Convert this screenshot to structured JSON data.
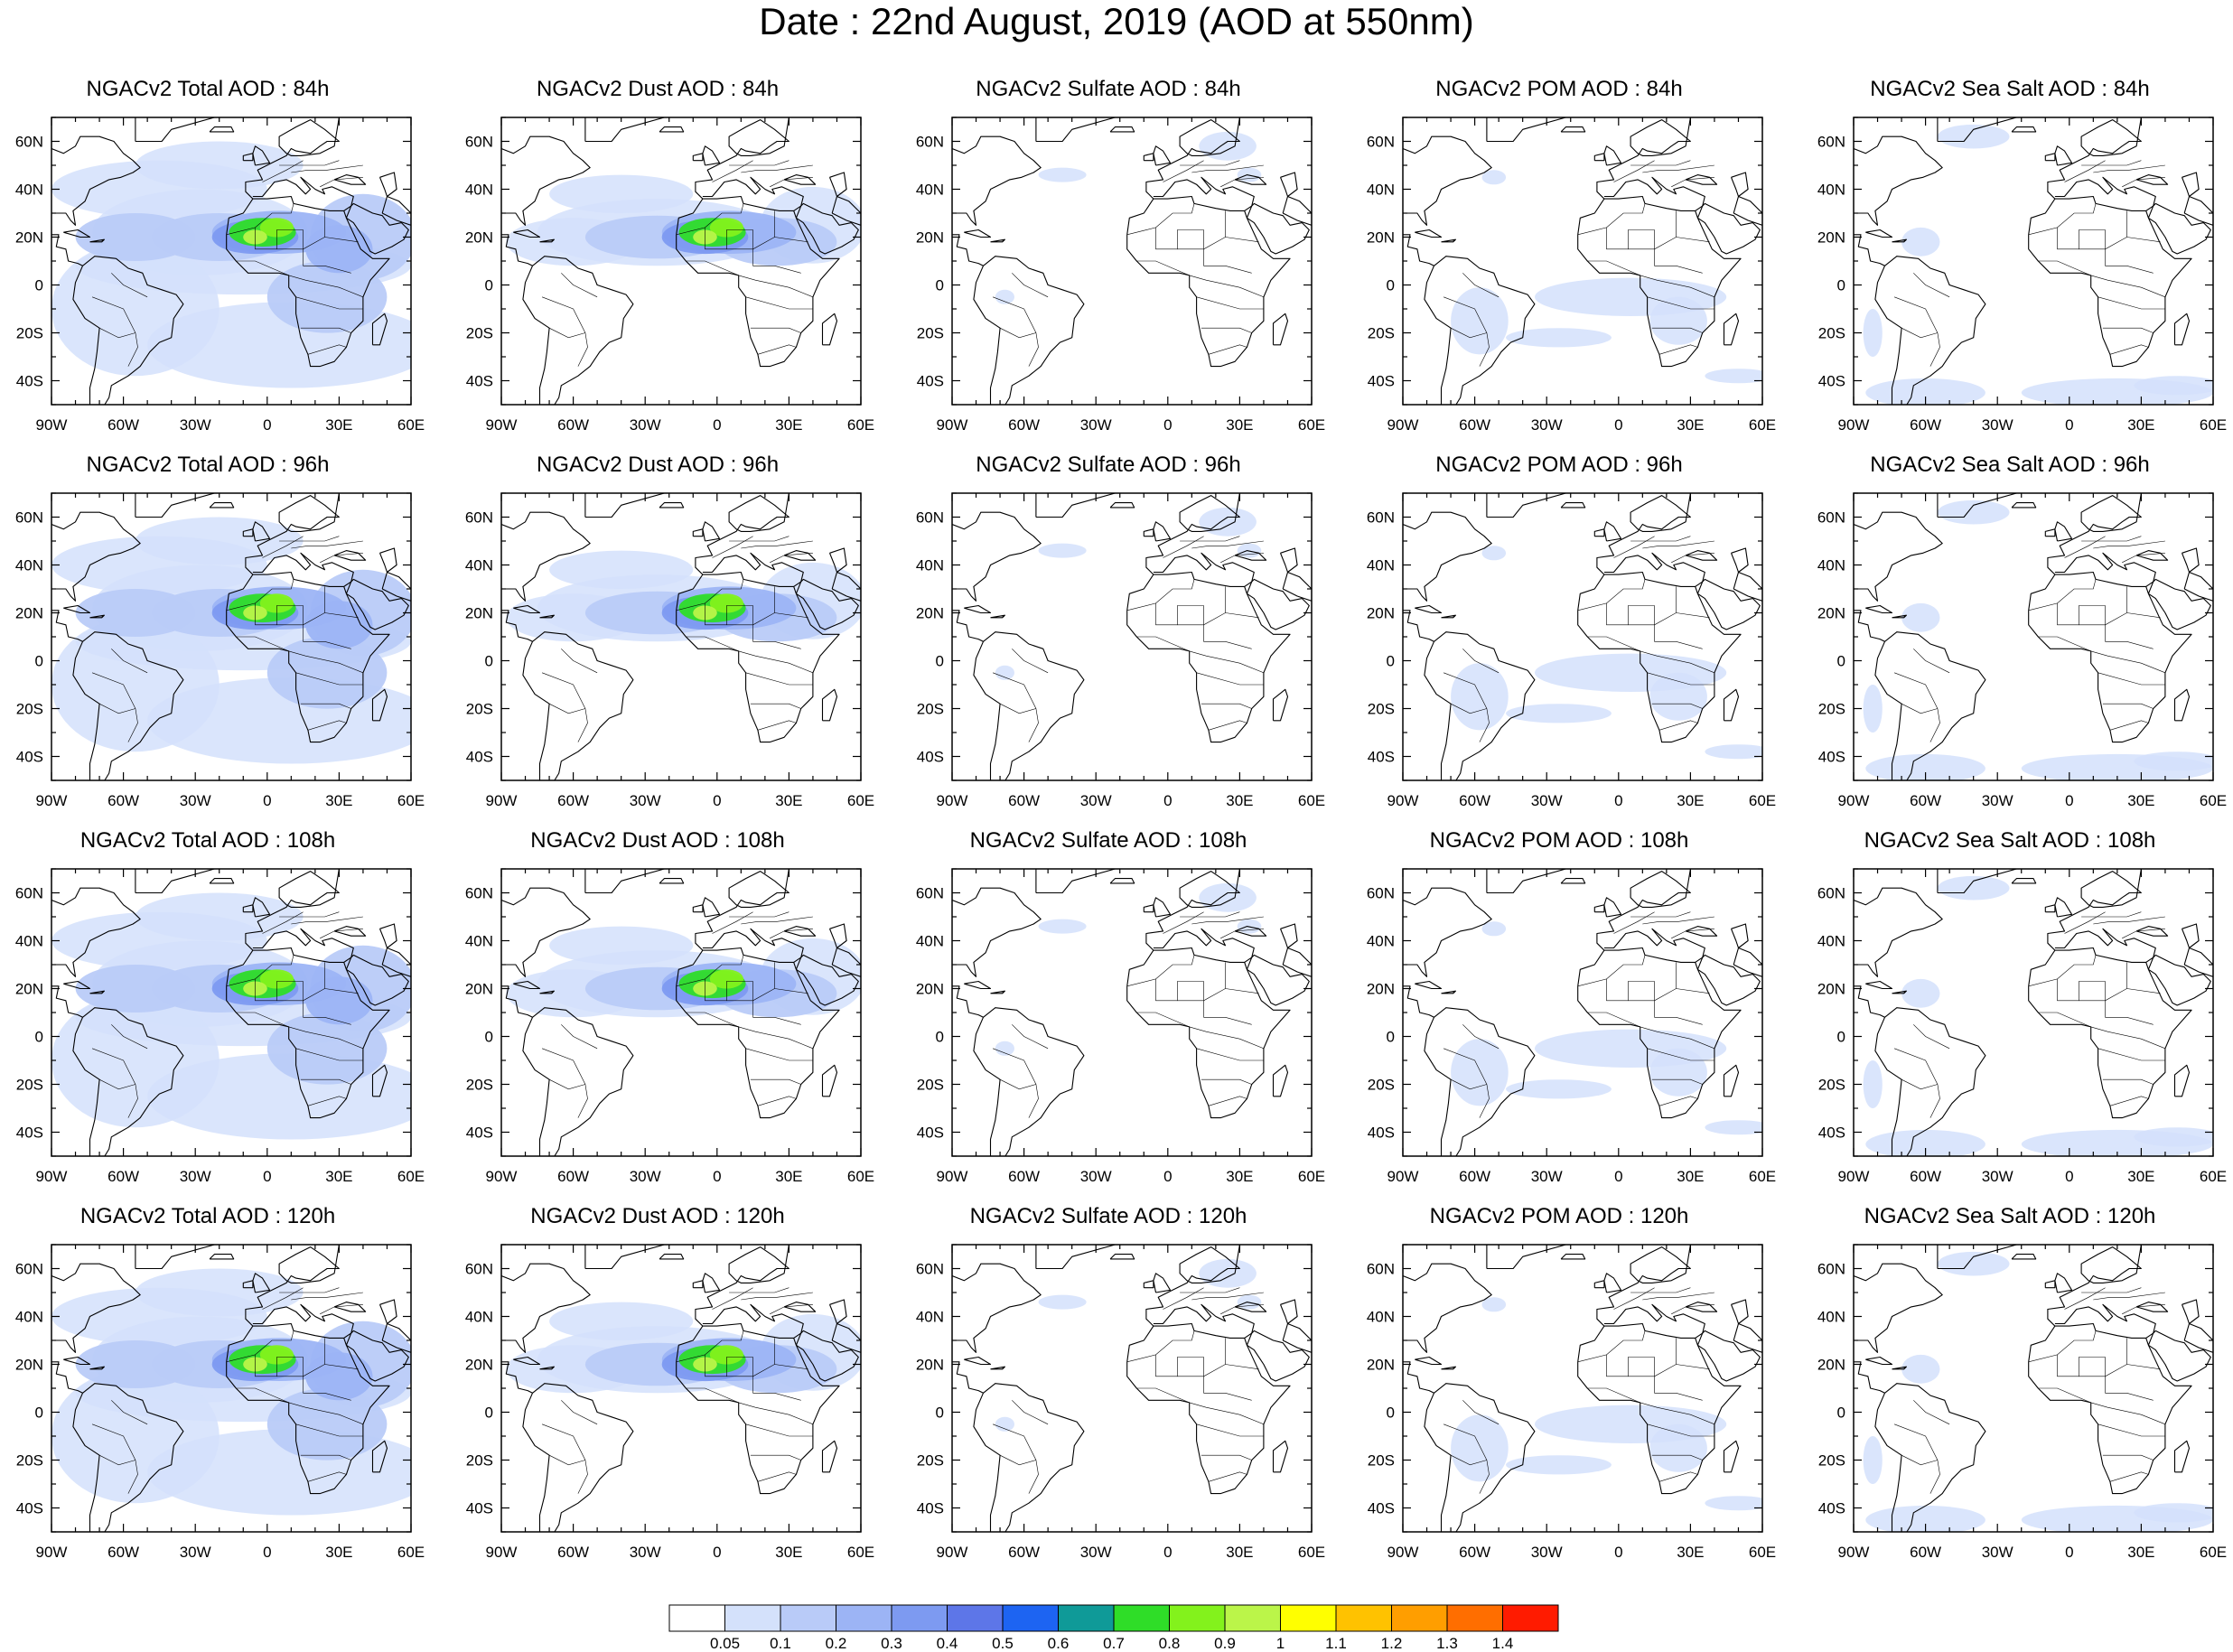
{
  "title": "Date : 22nd August, 2019 (AOD at 550nm)",
  "axes": {
    "lon_ticks": [
      "90W",
      "60W",
      "30W",
      "0",
      "30E",
      "60E"
    ],
    "lat_ticks": [
      "60N",
      "40N",
      "20N",
      "0",
      "20S",
      "40S"
    ],
    "lon_range": [
      -90,
      60
    ],
    "lat_range": [
      -50,
      70
    ]
  },
  "panels": [
    {
      "title": "NGACv2 Total AOD : 84h",
      "variable": "total",
      "hour": 84
    },
    {
      "title": "NGACv2 Dust AOD : 84h",
      "variable": "dust",
      "hour": 84
    },
    {
      "title": "NGACv2 Sulfate AOD : 84h",
      "variable": "sulfate",
      "hour": 84
    },
    {
      "title": "NGACv2 POM AOD : 84h",
      "variable": "pom",
      "hour": 84
    },
    {
      "title": "NGACv2 Sea Salt AOD : 84h",
      "variable": "seasalt",
      "hour": 84
    },
    {
      "title": "NGACv2 Total AOD : 96h",
      "variable": "total",
      "hour": 96
    },
    {
      "title": "NGACv2 Dust AOD : 96h",
      "variable": "dust",
      "hour": 96
    },
    {
      "title": "NGACv2 Sulfate AOD : 96h",
      "variable": "sulfate",
      "hour": 96
    },
    {
      "title": "NGACv2 POM AOD : 96h",
      "variable": "pom",
      "hour": 96
    },
    {
      "title": "NGACv2 Sea Salt AOD : 96h",
      "variable": "seasalt",
      "hour": 96
    },
    {
      "title": "NGACv2 Total AOD : 108h",
      "variable": "total",
      "hour": 108
    },
    {
      "title": "NGACv2 Dust AOD : 108h",
      "variable": "dust",
      "hour": 108
    },
    {
      "title": "NGACv2 Sulfate AOD : 108h",
      "variable": "sulfate",
      "hour": 108
    },
    {
      "title": "NGACv2 POM AOD : 108h",
      "variable": "pom",
      "hour": 108
    },
    {
      "title": "NGACv2 Sea Salt AOD : 108h",
      "variable": "seasalt",
      "hour": 108
    },
    {
      "title": "NGACv2 Total AOD : 120h",
      "variable": "total",
      "hour": 120
    },
    {
      "title": "NGACv2 Dust AOD : 120h",
      "variable": "dust",
      "hour": 120
    },
    {
      "title": "NGACv2 Sulfate AOD : 120h",
      "variable": "sulfate",
      "hour": 120
    },
    {
      "title": "NGACv2 POM AOD : 120h",
      "variable": "pom",
      "hour": 120
    },
    {
      "title": "NGACv2 Sea Salt  AOD : 120h",
      "variable": "seasalt",
      "hour": 120
    }
  ],
  "colorbar": {
    "labels": [
      "0.05",
      "0.1",
      "0.2",
      "0.3",
      "0.4",
      "0.5",
      "0.6",
      "0.7",
      "0.8",
      "0.9",
      "1",
      "1.1",
      "1.2",
      "1.3",
      "1.4"
    ],
    "colors": [
      "#ffffff",
      "#d4e1fb",
      "#b9cbf8",
      "#9cb4f5",
      "#7d9af1",
      "#5d76e8",
      "#1d64f2",
      "#0f9a98",
      "#2fdd28",
      "#83f21c",
      "#bbf549",
      "#ffff00",
      "#ffc200",
      "#ff9e00",
      "#ff6e00",
      "#ff1b00"
    ]
  },
  "chart_data": {
    "type": "heatmap",
    "value_label": "AOD at 550nm",
    "x_range": [
      -90,
      60
    ],
    "y_range": [
      -50,
      70
    ],
    "features": [
      {
        "variable": "total",
        "hour": 84,
        "max_level": "0.8-1.1",
        "regions": [
          "Sahara/Sahel dust plume",
          "tropical Atlantic",
          "Arabian Peninsula",
          "central Africa",
          "South Atlantic"
        ]
      },
      {
        "variable": "total",
        "hour": 96,
        "max_level": "0.8-1.1",
        "regions": [
          "Sahara/Sahel dust plume",
          "tropical Atlantic",
          "Arabian Peninsula",
          "central Africa"
        ]
      },
      {
        "variable": "total",
        "hour": 108,
        "max_level": "0.8-1.1",
        "regions": [
          "Sahara/Sahel dust plume",
          "tropical Atlantic",
          "central Africa"
        ]
      },
      {
        "variable": "total",
        "hour": 120,
        "max_level": "0.8-1.1",
        "regions": [
          "Sahara/Sahel dust plume",
          "Caribbean",
          "central Africa"
        ]
      },
      {
        "variable": "dust",
        "hour": 84,
        "max_level": "0.8-1.1",
        "regions": [
          "Sahara",
          "tropical Atlantic",
          "Arabian Peninsula"
        ]
      },
      {
        "variable": "dust",
        "hour": 96,
        "max_level": "0.8-1.1",
        "regions": [
          "Sahara",
          "tropical Atlantic",
          "Arabian Peninsula"
        ]
      },
      {
        "variable": "dust",
        "hour": 108,
        "max_level": "0.8-1.1",
        "regions": [
          "Sahara",
          "tropical Atlantic"
        ]
      },
      {
        "variable": "dust",
        "hour": 120,
        "max_level": "0.8-1.1",
        "regions": [
          "Sahara",
          "Caribbean"
        ]
      },
      {
        "variable": "sulfate",
        "hour": 84,
        "max_level": "0.05-0.1",
        "regions": [
          "eastern Europe",
          "North Atlantic"
        ]
      },
      {
        "variable": "sulfate",
        "hour": 96,
        "max_level": "0.05-0.1",
        "regions": [
          "eastern Europe",
          "North Atlantic"
        ]
      },
      {
        "variable": "sulfate",
        "hour": 108,
        "max_level": "0.05-0.1",
        "regions": [
          "eastern Europe",
          "North Atlantic"
        ]
      },
      {
        "variable": "sulfate",
        "hour": 120,
        "max_level": "0.05-0.1",
        "regions": [
          "eastern Europe",
          "North Atlantic"
        ]
      },
      {
        "variable": "pom",
        "hour": 84,
        "max_level": "0.1-0.2",
        "regions": [
          "central/southern Africa",
          "South Atlantic",
          "South America"
        ]
      },
      {
        "variable": "pom",
        "hour": 96,
        "max_level": "0.1-0.2",
        "regions": [
          "central/southern Africa",
          "South Atlantic",
          "South America"
        ]
      },
      {
        "variable": "pom",
        "hour": 108,
        "max_level": "0.1-0.2",
        "regions": [
          "central/southern Africa",
          "South Atlantic",
          "South America"
        ]
      },
      {
        "variable": "pom",
        "hour": 120,
        "max_level": "0.1-0.2",
        "regions": [
          "central/southern Africa",
          "South Atlantic",
          "South America"
        ]
      },
      {
        "variable": "seasalt",
        "hour": 84,
        "max_level": "0.05-0.1",
        "regions": [
          "Southern Ocean",
          "North Atlantic",
          "Caribbean"
        ]
      },
      {
        "variable": "seasalt",
        "hour": 96,
        "max_level": "0.05-0.1",
        "regions": [
          "Southern Ocean",
          "North Atlantic"
        ]
      },
      {
        "variable": "seasalt",
        "hour": 108,
        "max_level": "0.05-0.1",
        "regions": [
          "Southern Ocean",
          "North Atlantic"
        ]
      },
      {
        "variable": "seasalt",
        "hour": 120,
        "max_level": "0.05-0.1",
        "regions": [
          "Southern Ocean",
          "North Atlantic"
        ]
      }
    ]
  }
}
